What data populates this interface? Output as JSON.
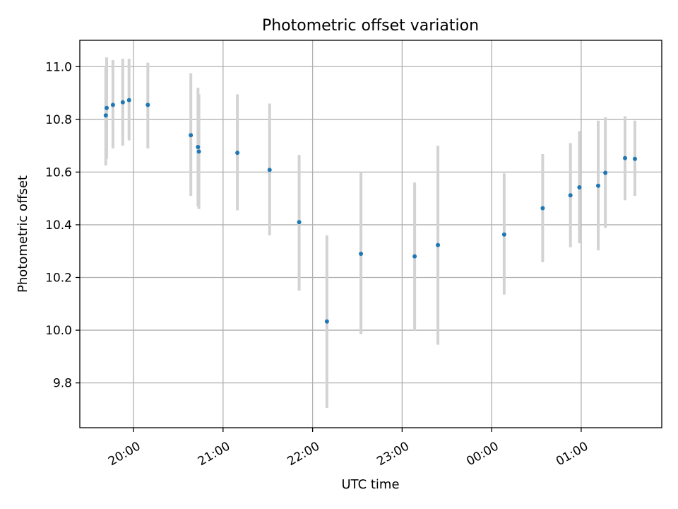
{
  "chart_data": {
    "type": "scatter",
    "title": "Photometric offset variation",
    "xlabel": "UTC time",
    "ylabel": "Photometric offset",
    "x_unit": "UTC time (hours, past midnight continues beyond 24)",
    "xlim": [
      19.4,
      25.9
    ],
    "ylim": [
      9.63,
      11.1
    ],
    "grid": true,
    "x_ticks": [
      {
        "value": 20,
        "label": "20:00"
      },
      {
        "value": 21,
        "label": "21:00"
      },
      {
        "value": 22,
        "label": "22:00"
      },
      {
        "value": 23,
        "label": "23:00"
      },
      {
        "value": 24,
        "label": "00:00"
      },
      {
        "value": 25,
        "label": "01:00"
      }
    ],
    "y_ticks": [
      {
        "value": 9.8,
        "label": "9.8"
      },
      {
        "value": 10.0,
        "label": "10.0"
      },
      {
        "value": 10.2,
        "label": "10.2"
      },
      {
        "value": 10.4,
        "label": "10.4"
      },
      {
        "value": 10.6,
        "label": "10.6"
      },
      {
        "value": 10.8,
        "label": "10.8"
      },
      {
        "value": 11.0,
        "label": "11.0"
      }
    ],
    "colors": {
      "points": "#1f77b4",
      "errorbars": "#d3d3d3",
      "grid": "#b0b0b0"
    },
    "points": [
      {
        "x": 19.69,
        "y": 10.815,
        "lo": 10.625,
        "hi": 11.0
      },
      {
        "x": 19.7,
        "y": 10.843,
        "lo": 10.65,
        "hi": 11.035
      },
      {
        "x": 19.77,
        "y": 10.855,
        "lo": 10.69,
        "hi": 11.025
      },
      {
        "x": 19.88,
        "y": 10.865,
        "lo": 10.7,
        "hi": 11.03
      },
      {
        "x": 19.95,
        "y": 10.873,
        "lo": 10.72,
        "hi": 11.03
      },
      {
        "x": 20.16,
        "y": 10.855,
        "lo": 10.69,
        "hi": 11.015
      },
      {
        "x": 20.64,
        "y": 10.74,
        "lo": 10.51,
        "hi": 10.975
      },
      {
        "x": 20.72,
        "y": 10.695,
        "lo": 10.47,
        "hi": 10.92
      },
      {
        "x": 20.73,
        "y": 10.678,
        "lo": 10.46,
        "hi": 10.895
      },
      {
        "x": 21.16,
        "y": 10.673,
        "lo": 10.455,
        "hi": 10.895
      },
      {
        "x": 21.52,
        "y": 10.608,
        "lo": 10.36,
        "hi": 10.86
      },
      {
        "x": 21.85,
        "y": 10.41,
        "lo": 10.15,
        "hi": 10.665
      },
      {
        "x": 22.16,
        "y": 10.033,
        "lo": 9.705,
        "hi": 10.36
      },
      {
        "x": 22.54,
        "y": 10.29,
        "lo": 9.985,
        "hi": 10.6
      },
      {
        "x": 23.14,
        "y": 10.28,
        "lo": 9.997,
        "hi": 10.56
      },
      {
        "x": 23.4,
        "y": 10.323,
        "lo": 9.945,
        "hi": 10.7
      },
      {
        "x": 24.14,
        "y": 10.363,
        "lo": 10.135,
        "hi": 10.595
      },
      {
        "x": 24.57,
        "y": 10.463,
        "lo": 10.258,
        "hi": 10.668
      },
      {
        "x": 24.88,
        "y": 10.512,
        "lo": 10.315,
        "hi": 10.71
      },
      {
        "x": 24.98,
        "y": 10.542,
        "lo": 10.33,
        "hi": 10.755
      },
      {
        "x": 25.19,
        "y": 10.548,
        "lo": 10.303,
        "hi": 10.795
      },
      {
        "x": 25.27,
        "y": 10.597,
        "lo": 10.388,
        "hi": 10.808
      },
      {
        "x": 25.49,
        "y": 10.653,
        "lo": 10.493,
        "hi": 10.812
      },
      {
        "x": 25.6,
        "y": 10.65,
        "lo": 10.51,
        "hi": 10.795
      }
    ]
  }
}
